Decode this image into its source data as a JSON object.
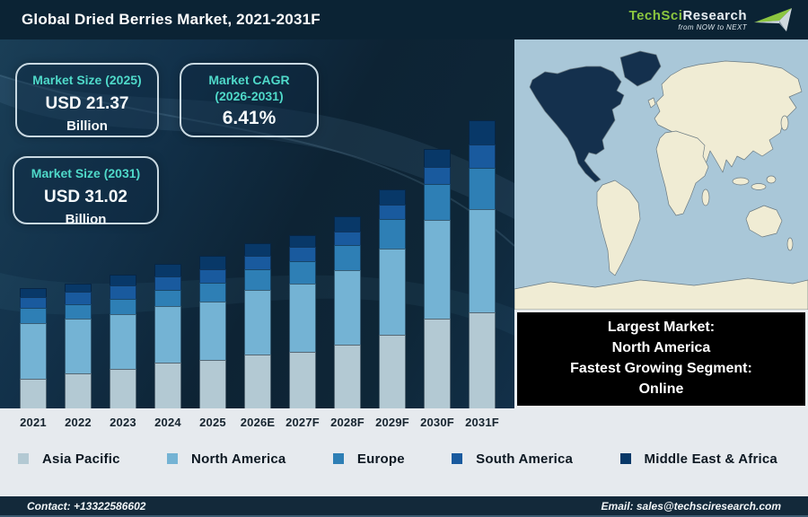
{
  "header": {
    "title": "Global Dried Berries Market, 2021-2031F",
    "logo": {
      "brand_primary": "TechSci",
      "brand_secondary": "Research",
      "tagline": "from NOW to NEXT",
      "brand_green": "#8cc63f"
    }
  },
  "info_boxes": {
    "market_size_2025": {
      "label": "Market Size (2025)",
      "value": "USD 21.37",
      "unit": "Billion"
    },
    "market_cagr": {
      "label_line1": "Market CAGR",
      "label_line2": "(2026-2031)",
      "value": "6.41%"
    },
    "market_size_2031": {
      "label": "Market Size (2031)",
      "value": "USD 31.02",
      "unit": "Billion"
    }
  },
  "chart_data": {
    "type": "bar",
    "stacked": true,
    "title": "Global Dried Berries Market, 2021-2031F",
    "categories": [
      "2021",
      "2022",
      "2023",
      "2024",
      "2025",
      "2026E",
      "2027F",
      "2028F",
      "2029F",
      "2030F",
      "2031F"
    ],
    "series": [
      {
        "name": "Asia Pacific",
        "color": "#b3c9d3",
        "values": [
          33,
          39,
          44,
          51,
          54,
          60,
          63,
          71,
          82,
          100,
          107
        ]
      },
      {
        "name": "North America",
        "color": "#74b3d4",
        "values": [
          62,
          61,
          61,
          63,
          65,
          72,
          76,
          83,
          96,
          110,
          115
        ]
      },
      {
        "name": "Europe",
        "color": "#2e7fb5",
        "values": [
          17,
          16,
          17,
          18,
          21,
          23,
          25,
          28,
          33,
          40,
          46
        ]
      },
      {
        "name": "South America",
        "color": "#195a9e",
        "values": [
          12,
          14,
          15,
          15,
          15,
          15,
          16,
          15,
          16,
          19,
          26
        ]
      },
      {
        "name": "Middle East & Africa",
        "color": "#083868",
        "values": [
          10,
          9,
          12,
          14,
          15,
          14,
          13,
          17,
          17,
          20,
          27
        ]
      }
    ],
    "units": "relative bar height (illustrative; no y-axis shown in figure)",
    "axis": {
      "y_axis_visible": false,
      "gridlines": false
    },
    "legend_position": "bottom",
    "annotations": {
      "market_size_2025_usd_billion": 21.37,
      "market_size_2031_usd_billion": 31.02,
      "cagr_2026_2031_percent": 6.41,
      "largest_market": "North America",
      "fastest_growing_segment": "Online"
    }
  },
  "map": {
    "highlighted_region": "North America",
    "ocean_color": "#a9c7d8",
    "land_color": "#f0ecd4",
    "highlight_color": "#14304d"
  },
  "callout": {
    "line1": "Largest Market:",
    "line2": "North America",
    "line3": "Fastest Growing Segment:",
    "line4": "Online"
  },
  "footer": {
    "contact": "Contact: +13322586602",
    "email": "Email: sales@techsciresearch.com"
  },
  "colors": {
    "header_bg": "#0b2334",
    "chart_bg_dark": "#0d2334",
    "accent_teal": "#4fd9c9",
    "strip_bg": "#e6eaee",
    "footer_bg": "#13293a"
  }
}
